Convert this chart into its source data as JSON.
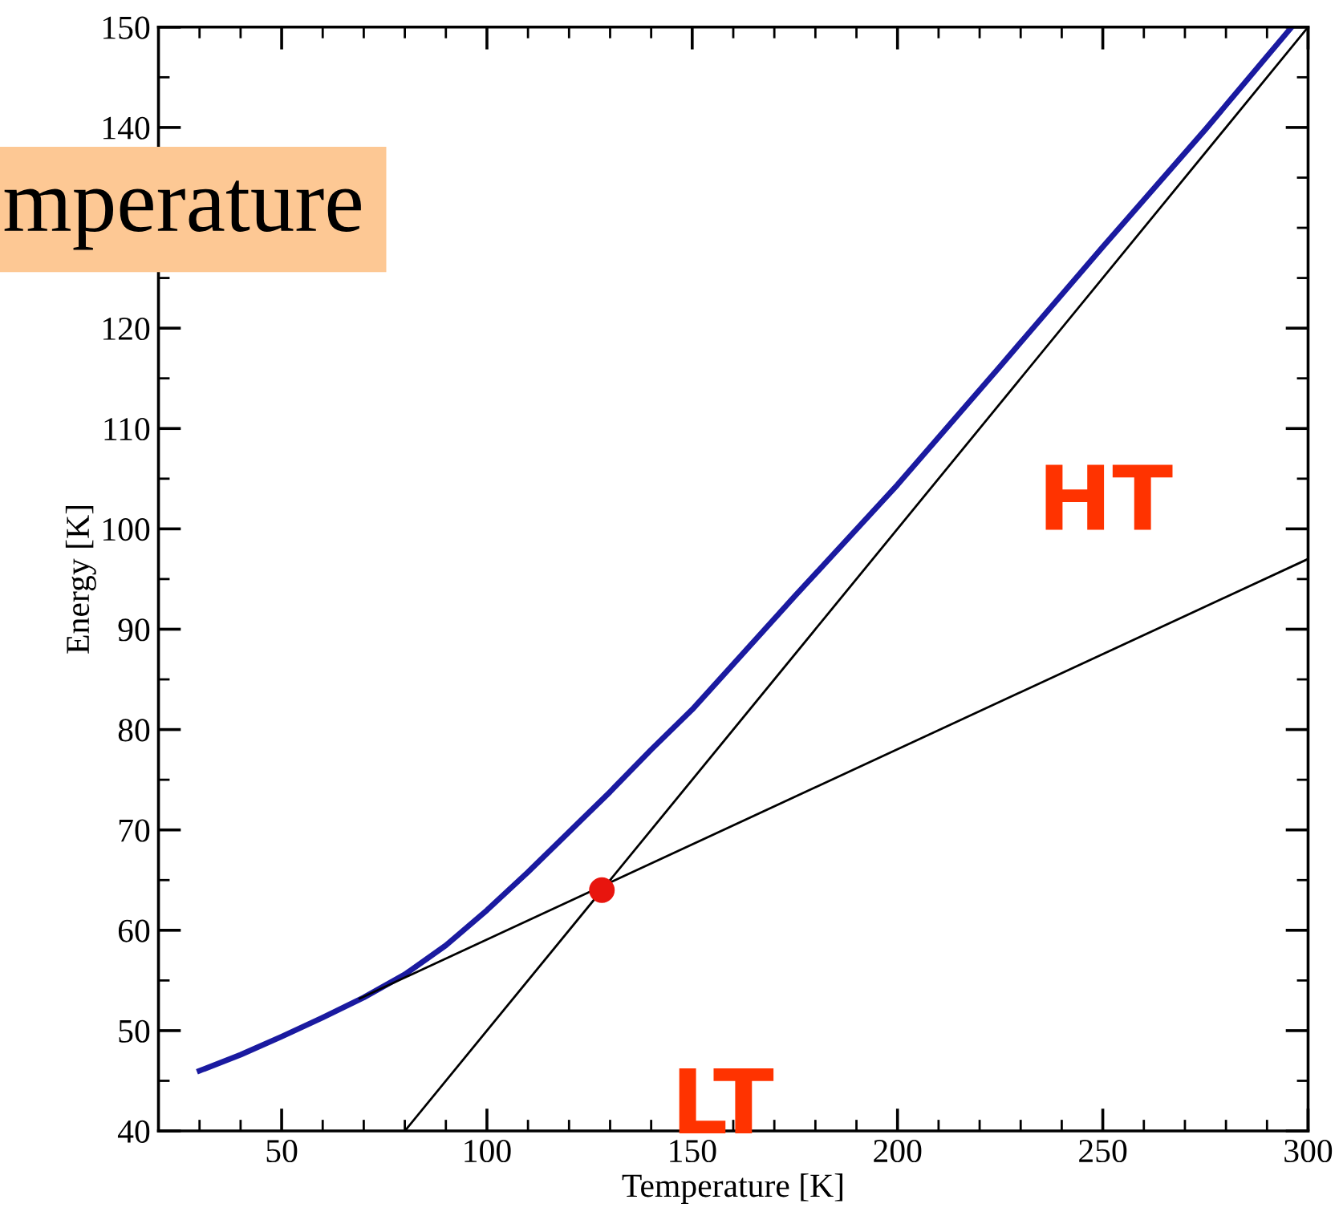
{
  "chart_data": {
    "type": "line",
    "xlabel": "Temperature [K]",
    "ylabel": "Energy [K]",
    "xlim": [
      20,
      300
    ],
    "ylim": [
      40,
      150
    ],
    "xticks": [
      {
        "value": 30,
        "label": null
      },
      {
        "value": 40,
        "label": null
      },
      50,
      {
        "value": 60,
        "label": null
      },
      {
        "value": 70,
        "label": null
      },
      {
        "value": 80,
        "label": null
      },
      {
        "value": 90,
        "label": null
      },
      100,
      {
        "value": 110,
        "label": null
      },
      {
        "value": 120,
        "label": null
      },
      {
        "value": 130,
        "label": null
      },
      {
        "value": 140,
        "label": null
      },
      150,
      {
        "value": 160,
        "label": null
      },
      {
        "value": 170,
        "label": null
      },
      {
        "value": 180,
        "label": null
      },
      {
        "value": 190,
        "label": null
      },
      200,
      {
        "value": 210,
        "label": null
      },
      {
        "value": 220,
        "label": null
      },
      {
        "value": 230,
        "label": null
      },
      {
        "value": 240,
        "label": null
      },
      250,
      {
        "value": 260,
        "label": null
      },
      {
        "value": 270,
        "label": null
      },
      {
        "value": 280,
        "label": null
      },
      {
        "value": 290,
        "label": null
      },
      300
    ],
    "yticks": [
      40,
      {
        "value": 45,
        "label": null
      },
      50,
      {
        "value": 55,
        "label": null
      },
      60,
      {
        "value": 65,
        "label": null
      },
      70,
      {
        "value": 75,
        "label": null
      },
      80,
      {
        "value": 85,
        "label": null
      },
      90,
      {
        "value": 95,
        "label": null
      },
      100,
      {
        "value": 105,
        "label": null
      },
      110,
      {
        "value": 115,
        "label": null
      },
      120,
      {
        "value": 125,
        "label": null
      },
      {
        "value": 130,
        "label": null
      },
      {
        "value": 135,
        "label": null
      },
      140,
      {
        "value": 145,
        "label": null
      },
      150
    ],
    "grid": false,
    "legend": false,
    "marker": "none",
    "line_style": "solid",
    "series": [
      {
        "color": "#1a1aa0",
        "x": [
          30,
          40,
          50,
          60,
          70,
          80,
          90,
          100,
          110,
          120,
          130,
          140,
          150,
          175,
          200,
          225,
          250,
          275,
          296
        ],
        "values": [
          46,
          47.6,
          49.4,
          51.3,
          53.3,
          55.6,
          58.5,
          62,
          65.8,
          69.8,
          73.8,
          78,
          82,
          93.3,
          104.4,
          116.2,
          128.1,
          139.8,
          150
        ]
      },
      {
        "color": "#000000",
        "x": [
          80,
          300
        ],
        "values": [
          40,
          150
        ]
      },
      {
        "color": "#000000",
        "x": [
          69,
          300
        ],
        "values": [
          53.2,
          97
        ]
      },
      {
        "type": "scatter",
        "color": "#e8150e",
        "marker": "circle",
        "x": [
          128
        ],
        "values": [
          64
        ]
      }
    ],
    "annotations": [
      "mperature",
      "HT",
      "LT"
    ]
  }
}
